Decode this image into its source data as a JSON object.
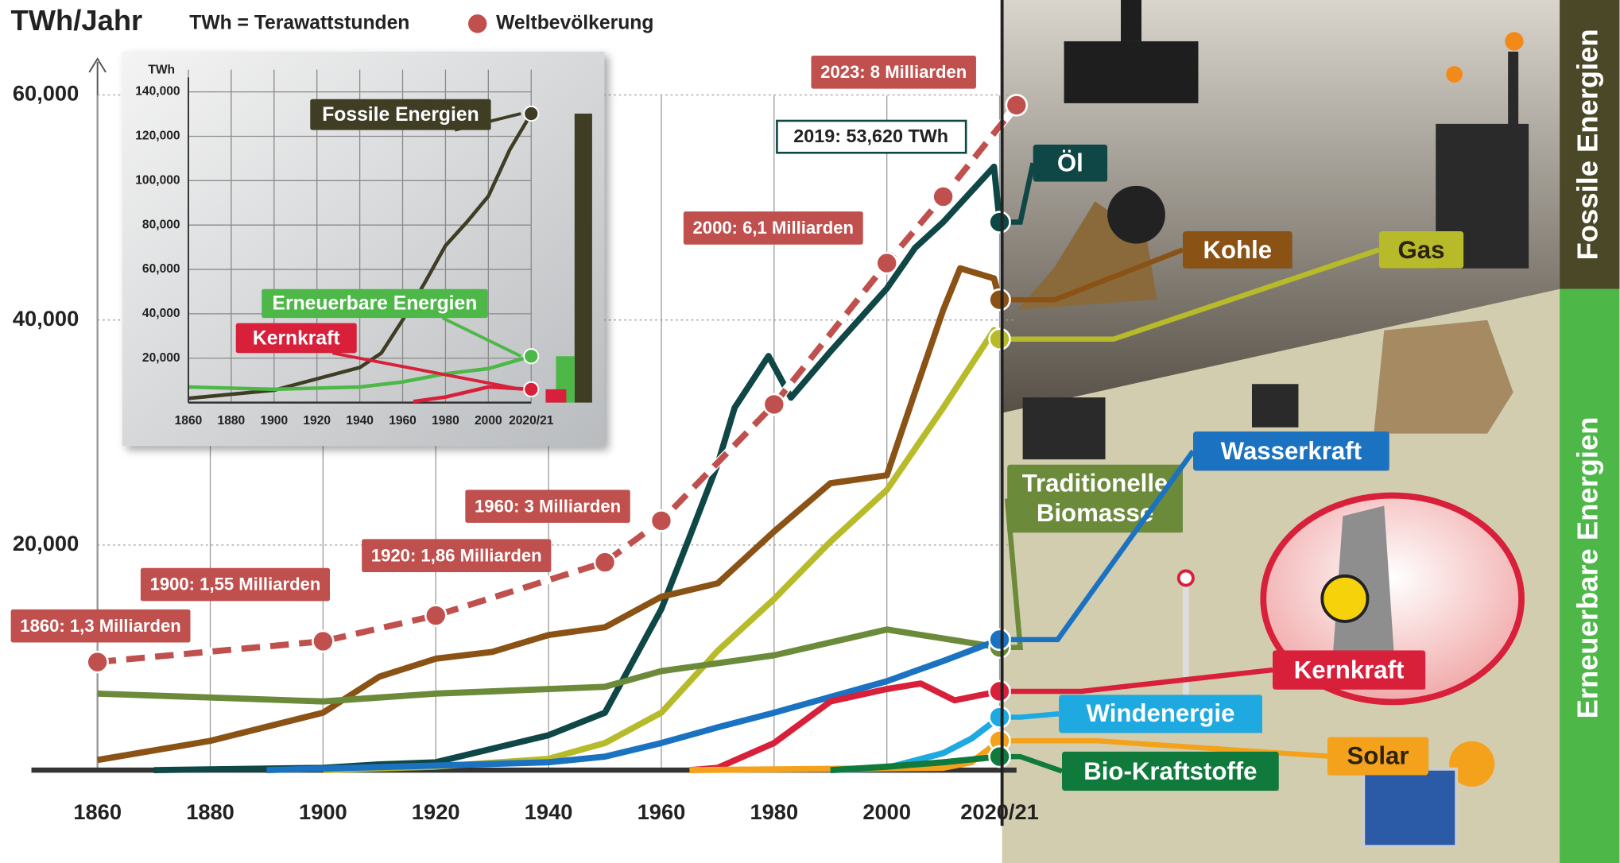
{
  "chart_data": [
    {
      "type": "line",
      "y_label": "TWh/Jahr",
      "annotations": [
        "TWh = Terawattstunden",
        "2019: 53,620 TWh",
        "Fossile Energien",
        "Erneuerbare Energien"
      ],
      "xlim": [
        1860,
        2023
      ],
      "xticks": [
        1860,
        1880,
        1900,
        1920,
        1940,
        1960,
        1980,
        2000,
        {
          "value": 2020,
          "label": "2020/21"
        }
      ],
      "ylim": [
        0,
        65000
      ],
      "yticks": [
        {
          "value": 20000,
          "label": "20,000"
        },
        {
          "value": 40000,
          "label": "40,000"
        },
        {
          "value": 60000,
          "label": "60,000"
        }
      ],
      "y2lim": [
        0,
        8.8
      ],
      "grid": true,
      "series": [
        {
          "name": "Öl",
          "color": "#0e4745",
          "x": [
            1870,
            1900,
            1910,
            1920,
            1930,
            1940,
            1950,
            1960,
            1965,
            1970,
            1973,
            1979,
            1983,
            1990,
            2000,
            2005,
            2010,
            2019,
            2020
          ],
          "values": [
            0,
            200,
            500,
            700,
            1900,
            3100,
            5100,
            14300,
            20700,
            27200,
            32200,
            36800,
            33100,
            37200,
            42800,
            46400,
            48700,
            53620,
            48700
          ]
        },
        {
          "name": "Kohle",
          "color": "#8a5214",
          "x": [
            1860,
            1880,
            1900,
            1910,
            1920,
            1930,
            1940,
            1950,
            1960,
            1970,
            1980,
            1990,
            2000,
            2005,
            2010,
            2013,
            2019,
            2020
          ],
          "values": [
            900,
            2600,
            5100,
            8300,
            9900,
            10500,
            12000,
            12700,
            15400,
            16600,
            21200,
            25500,
            26200,
            33600,
            40900,
            44600,
            43700,
            41800
          ]
        },
        {
          "name": "Gas",
          "color": "#b7bb2a",
          "x": [
            1900,
            1920,
            1940,
            1950,
            1960,
            1970,
            1980,
            1990,
            2000,
            2010,
            2019,
            2020
          ],
          "values": [
            0,
            300,
            1000,
            2400,
            5100,
            10600,
            15200,
            20300,
            24900,
            32200,
            39100,
            38300
          ]
        },
        {
          "name": "Traditionelle Biomasse",
          "color": "#6b8a3a",
          "x": [
            1860,
            1900,
            1920,
            1950,
            1960,
            1980,
            2000,
            2010,
            2020
          ],
          "values": [
            6800,
            6100,
            6800,
            7400,
            8800,
            10200,
            12500,
            11700,
            10900
          ]
        },
        {
          "name": "Wasserkraft",
          "color": "#1a72c0",
          "x": [
            1890,
            1920,
            1940,
            1950,
            1960,
            1970,
            1980,
            1990,
            2000,
            2010,
            2020
          ],
          "values": [
            0,
            400,
            700,
            1200,
            2400,
            3800,
            5100,
            6500,
            7900,
            9700,
            11600
          ]
        },
        {
          "name": "Kernkraft",
          "color": "#d8203a",
          "x": [
            1965,
            1970,
            1980,
            1990,
            2000,
            2006,
            2012,
            2020
          ],
          "values": [
            0,
            200,
            2400,
            6100,
            7200,
            7700,
            6200,
            7000
          ]
        },
        {
          "name": "Windenergie",
          "color": "#1fa9e1",
          "x": [
            1990,
            2000,
            2010,
            2015,
            2020
          ],
          "values": [
            0,
            200,
            1500,
            2800,
            4700
          ]
        },
        {
          "name": "Solar",
          "color": "#f4a21b",
          "x": [
            1965,
            2010,
            2015,
            2020
          ],
          "values": [
            0,
            200,
            700,
            2600
          ]
        },
        {
          "name": "Bio-Kraftstoffe",
          "color": "#0f7a3b",
          "x": [
            1990,
            2000,
            2010,
            2020
          ],
          "values": [
            0,
            300,
            700,
            1200
          ]
        },
        {
          "name": "Weltbevölkerung",
          "color": "#c0504d",
          "axis": "y2",
          "dashed": true,
          "x": [
            1860,
            1900,
            1920,
            1950,
            1960,
            1980,
            2000,
            2010,
            2023
          ],
          "values": [
            1.3,
            1.55,
            1.86,
            2.5,
            3,
            4.4,
            6.1,
            6.9,
            8
          ],
          "value_labels": [
            "1860: 1,3 Milliarden",
            "1900: 1,55 Milliarden",
            "1920: 1,86 Milliarden",
            null,
            "1960: 3 Milliarden",
            null,
            "2000: 6,1 Milliarden",
            null,
            "2023: 8 Milliarden"
          ]
        }
      ]
    },
    {
      "type": "line",
      "y_label": "TWh",
      "xlim": [
        1860,
        2020
      ],
      "xticks": [
        1860,
        1880,
        1900,
        1920,
        1940,
        1960,
        1980,
        2000,
        {
          "value": 2020,
          "label": "2020/21"
        }
      ],
      "ylim": [
        0,
        150000
      ],
      "yticks": [
        {
          "value": 20000,
          "label": "20,000"
        },
        {
          "value": 40000,
          "label": "40,000"
        },
        {
          "value": 60000,
          "label": "60,000"
        },
        {
          "value": 80000,
          "label": "80,000"
        },
        {
          "value": 100000,
          "label": "100,000"
        },
        {
          "value": 120000,
          "label": "120,000"
        },
        {
          "value": 140000,
          "label": "140,000"
        }
      ],
      "grid": true,
      "series": [
        {
          "name": "Fossile Energien",
          "color": "#3f3d24",
          "x": [
            1860,
            1900,
            1940,
            1950,
            1960,
            1970,
            1980,
            1990,
            2000,
            2010,
            2020
          ],
          "values": [
            1900,
            5600,
            15800,
            22300,
            37200,
            53500,
            70700,
            81400,
            93000,
            114000,
            130200
          ]
        },
        {
          "name": "Erneuerbare Energien",
          "color": "#4db848",
          "x": [
            1860,
            1900,
            1940,
            1960,
            1980,
            2000,
            2020
          ],
          "values": [
            7000,
            6000,
            7000,
            9300,
            13000,
            15300,
            20900
          ]
        },
        {
          "name": "Kernkraft",
          "color": "#d8203a",
          "x": [
            1965,
            1980,
            2000,
            2020
          ],
          "values": [
            500,
            2500,
            7000,
            6000
          ]
        }
      ]
    }
  ]
}
